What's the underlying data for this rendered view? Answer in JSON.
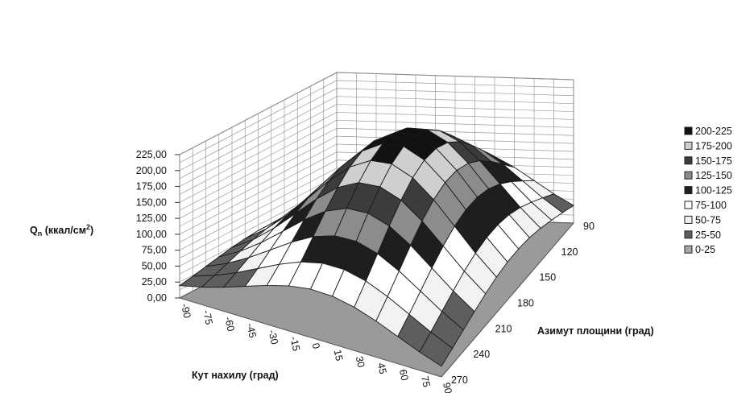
{
  "chart_data": {
    "type": "surface",
    "zlabel": "Qn (ккал/см²)",
    "zlabel_main": "Q",
    "zlabel_sub": "n",
    "zlabel_unit": " (ккал/см",
    "zlabel_sup": "2",
    "zlabel_close": ")",
    "xlabel": "Кут нахилу (град)",
    "ylabel": "Азимут площини (град)",
    "zlim": [
      0,
      225
    ],
    "z_ticks": [
      "0,00",
      "25,00",
      "50,00",
      "75,00",
      "100,00",
      "125,00",
      "150,00",
      "175,00",
      "200,00",
      "225,00"
    ],
    "x_ticks": [
      "-90",
      "-75",
      "-60",
      "-45",
      "-30",
      "-15",
      "0",
      "15",
      "30",
      "45",
      "60",
      "75",
      "90"
    ],
    "y_ticks": [
      "90",
      "120",
      "150",
      "180",
      "210",
      "240",
      "270"
    ],
    "x_values": [
      -90,
      -75,
      -60,
      -45,
      -30,
      -15,
      0,
      15,
      30,
      45,
      60,
      75,
      90
    ],
    "y_values": [
      90,
      105,
      120,
      135,
      150,
      165,
      180,
      195,
      210,
      225,
      240,
      255,
      270
    ],
    "legend": [
      "200-225",
      "175-200",
      "150-175",
      "125-150",
      "100-125",
      "75-100",
      "50-75",
      "25-50",
      "0-25"
    ],
    "legend_colors": [
      "#111111",
      "#cfcfcf",
      "#3c3c3c",
      "#8c8c8c",
      "#1e1e1e",
      "#ffffff",
      "#f2f2f2",
      "#5e5e5e",
      "#a8a8a8"
    ],
    "band_colors": [
      "#a8a8a8",
      "#5e5e5e",
      "#f2f2f2",
      "#ffffff",
      "#1e1e1e",
      "#8c8c8c",
      "#3c3c3c",
      "#cfcfcf",
      "#111111"
    ],
    "grid": true,
    "legend_position": "right"
  }
}
